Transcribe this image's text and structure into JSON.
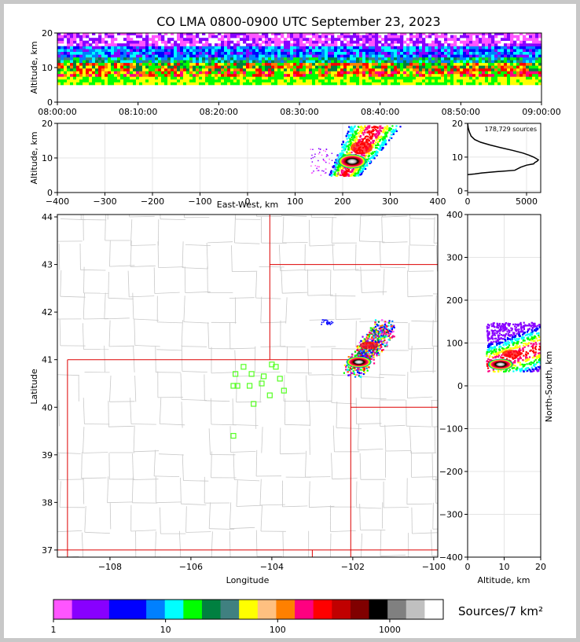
{
  "chart_data": [
    {
      "type": "heatmap",
      "panel": "altitude-time",
      "title": "CO LMA 0800-0900 UTC September 23, 2023",
      "xlabel": "",
      "ylabel": "Altitude, km",
      "x_ticks": [
        "08:00:00",
        "08:10:00",
        "08:20:00",
        "08:30:00",
        "08:40:00",
        "08:50:00",
        "09:00:00"
      ],
      "y_ticks": [
        "0",
        "10",
        "20"
      ],
      "xlim": [
        "08:00:00",
        "09:00:00"
      ],
      "ylim": [
        0,
        20
      ],
      "density_band_km": [
        5,
        20
      ]
    },
    {
      "type": "heatmap",
      "panel": "altitude-east-west",
      "xlabel": "East-West, km",
      "ylabel": "Altitude, km",
      "x_ticks": [
        "−400",
        "−300",
        "−200",
        "−100",
        "0",
        "100",
        "200",
        "300",
        "400"
      ],
      "y_ticks": [
        "0",
        "10",
        "20"
      ],
      "xlim": [
        -400,
        400
      ],
      "ylim": [
        0,
        20
      ],
      "core": {
        "x": 220,
        "alt": 9
      }
    },
    {
      "type": "line",
      "panel": "altitude-histogram",
      "annotation": "178,729 sources",
      "x_ticks": [
        "0",
        "5000"
      ],
      "y_ticks": [
        "0",
        "10",
        "20"
      ],
      "xlim": [
        0,
        6200
      ],
      "ylim": [
        0,
        20
      ],
      "x": [
        0,
        600,
        1200,
        2500,
        4000,
        4500,
        5000,
        5600,
        5700,
        5900,
        6000,
        5600,
        5200,
        4700,
        3800,
        2800,
        1900,
        1100,
        600,
        300,
        150,
        50,
        0
      ],
      "y": [
        4.8,
        5.0,
        5.3,
        5.7,
        6.1,
        7.0,
        7.6,
        8.0,
        8.4,
        8.8,
        9.2,
        10.0,
        10.6,
        11.2,
        12.0,
        12.8,
        13.6,
        14.4,
        15.2,
        16.2,
        17.4,
        18.6,
        20
      ]
    },
    {
      "type": "scatter",
      "panel": "plan-view-map",
      "xlabel": "Longitude",
      "ylabel": "Latitude",
      "x_ticks": [
        "−108",
        "−106",
        "−104",
        "−102",
        "−100"
      ],
      "y_ticks": [
        "37",
        "38",
        "39",
        "40",
        "41",
        "42",
        "43",
        "44"
      ],
      "xlim": [
        -109.3,
        -99.9
      ],
      "ylim": [
        36.85,
        44.05
      ],
      "stations": {
        "lon": [
          -104.9,
          -104.7,
          -104.5,
          -104.2,
          -104.0,
          -103.9,
          -104.55,
          -104.85,
          -104.95,
          -104.25,
          -103.8,
          -103.7,
          -104.05,
          -104.45,
          -104.95
        ],
        "lat": [
          40.7,
          40.85,
          40.7,
          40.65,
          40.9,
          40.85,
          40.45,
          40.45,
          40.45,
          40.5,
          40.6,
          40.35,
          40.25,
          40.07,
          39.4
        ]
      },
      "core": {
        "lon": -101.7,
        "lat": 40.95
      }
    },
    {
      "type": "heatmap",
      "panel": "north-south-altitude",
      "xlabel": "Altitude, km",
      "ylabel": "North-South, km",
      "x_ticks": [
        "0",
        "10",
        "20"
      ],
      "y_ticks": [
        "−400",
        "−300",
        "−200",
        "−100",
        "0",
        "100",
        "200",
        "300",
        "400"
      ],
      "xlim": [
        0,
        20
      ],
      "ylim": [
        -400,
        400
      ],
      "core": {
        "alt": 9,
        "y": 60
      }
    },
    {
      "type": "table",
      "panel": "colorbar",
      "label": "Sources/7 km²",
      "tick_labels": [
        "1",
        "10",
        "100",
        "1000"
      ],
      "colors": [
        "#ff55ff",
        "#8800ff",
        "#8800ff",
        "#0000ff",
        "#0000ff",
        "#0080ff",
        "#00ffff",
        "#00ff00",
        "#008040",
        "#408080",
        "#ffff00",
        "#ffc080",
        "#ff8000",
        "#ff0080",
        "#ff0000",
        "#c00000",
        "#800000",
        "#000000",
        "#808080",
        "#c0c0c0",
        "#ffffff"
      ]
    }
  ]
}
